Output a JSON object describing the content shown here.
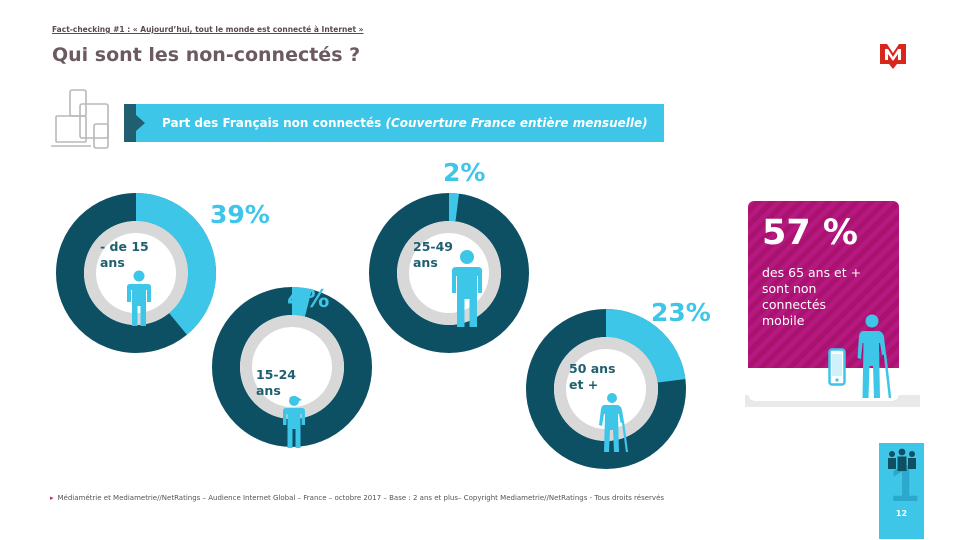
{
  "header": {
    "kicker": "Fact-checking #1 : « Aujourd’hui, tout le monde est connecté à Internet »",
    "title": "Qui sont les non-connectés ?"
  },
  "banner": {
    "label": "Part des Français non connectés",
    "note": "(Couverture France entière mensuelle)"
  },
  "groups": [
    {
      "age_line1": "- de 15",
      "age_line2": "ans",
      "percent_label": "39%",
      "share": 0.39
    },
    {
      "age_line1": "15-24",
      "age_line2": "ans",
      "percent_label": "4%",
      "share": 0.04
    },
    {
      "age_line1": "25-49",
      "age_line2": "ans",
      "percent_label": "2%",
      "share": 0.02
    },
    {
      "age_line1": "50 ans",
      "age_line2": "et +",
      "percent_label": "23%",
      "share": 0.23
    }
  ],
  "card": {
    "value": "57 %",
    "text": "des 65 ans et + sont non connectés mobile"
  },
  "footnote": "Médiamétrie et Mediametrie//NetRatings – Audience Internet Global – France – octobre 2017 – Base : 2 ans et plus– Copyright Mediametrie//NetRatings - Tous droits réservés",
  "page_number": "12",
  "colors": {
    "accent": "#3ec6e8",
    "dark_teal": "#0d4f63",
    "inner_gray": "#d8d8d8",
    "magenta": "#b5187e",
    "title_color": "#6b5a62"
  }
}
